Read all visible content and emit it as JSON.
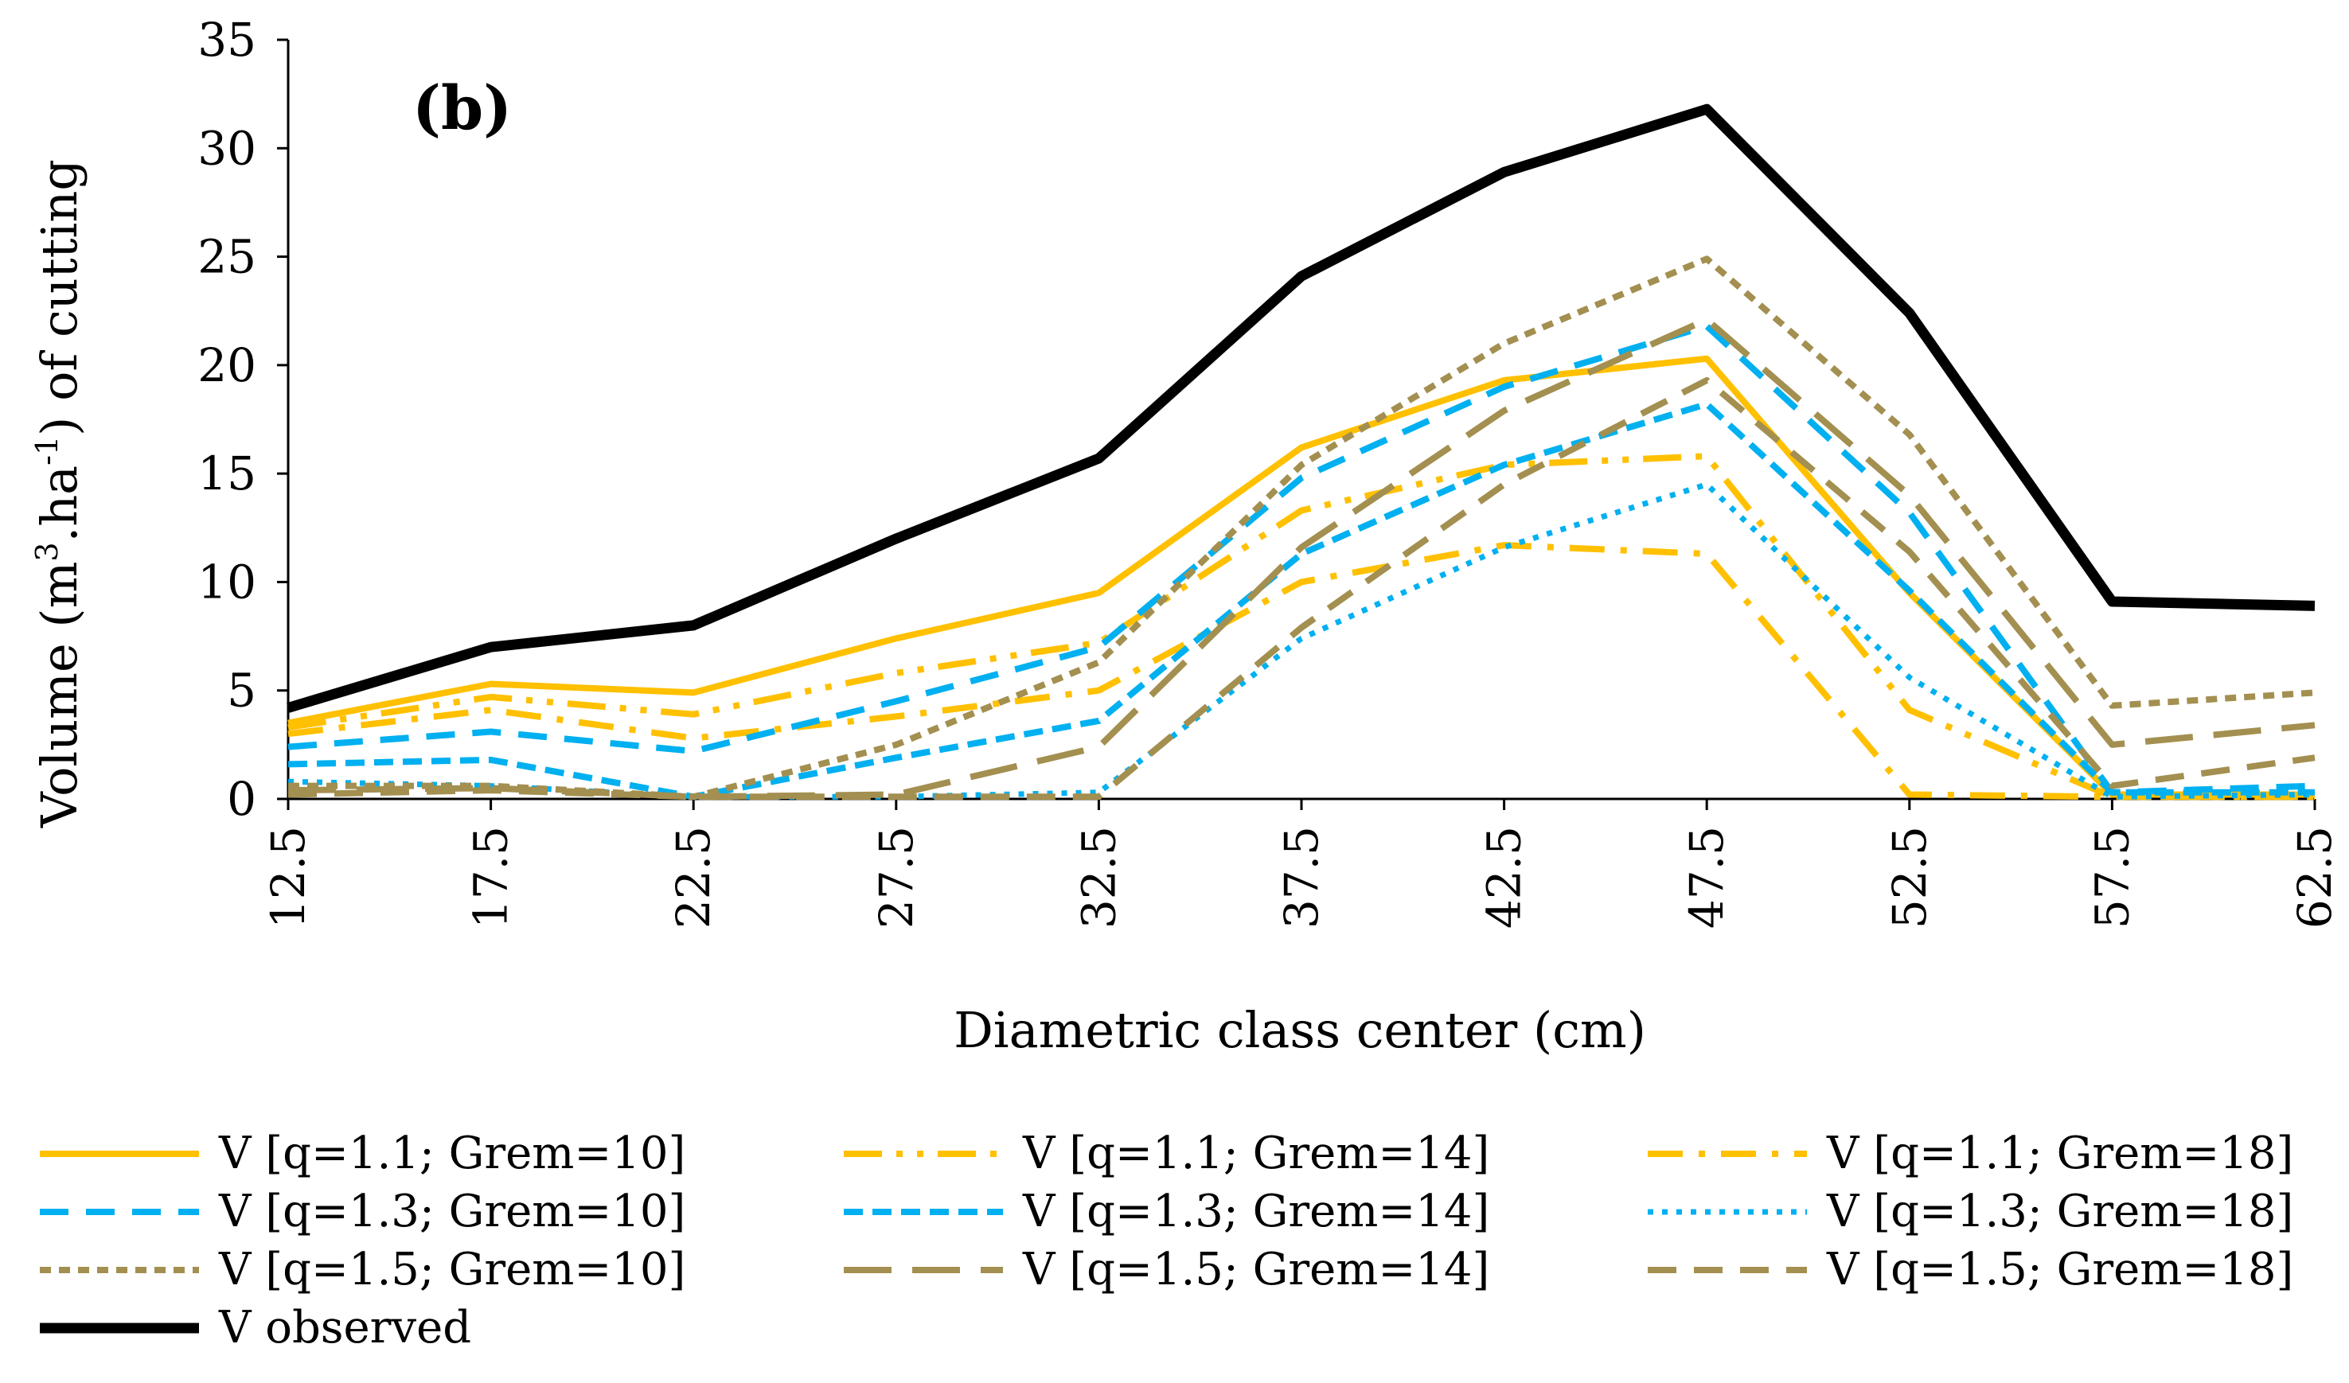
{
  "chart_data": {
    "type": "line",
    "panel_label": "(b)",
    "xlabel": "Diametric class center  (cm)",
    "ylabel_parts": [
      "Volume (m",
      "3",
      ".ha",
      "-1",
      ") of cutting"
    ],
    "categories": [
      "12.5",
      "17.5",
      "22.5",
      "27.5",
      "32.5",
      "37.5",
      "42.5",
      "47.5",
      "52.5",
      "57.5",
      "62.5"
    ],
    "ylim": [
      0,
      35
    ],
    "yticks": [
      "0",
      "5",
      "10",
      "15",
      "20",
      "25",
      "30",
      "35"
    ],
    "grid": false,
    "legend_position": "bottom",
    "series": [
      {
        "name": "V [q=1.1; Grem=10]",
        "color": "#FFC000",
        "style": "solid",
        "values": [
          3.5,
          5.3,
          4.9,
          7.4,
          9.5,
          16.2,
          19.3,
          20.3,
          9.5,
          0.2,
          0.2
        ]
      },
      {
        "name": "V [q=1.1; Grem=14]",
        "color": "#FFC000",
        "style": "longdashdotdot",
        "values": [
          3.3,
          4.7,
          3.9,
          5.8,
          7.2,
          13.3,
          15.4,
          15.8,
          4.1,
          0.1,
          0.1
        ]
      },
      {
        "name": "V [q=1.1; Grem=18]",
        "color": "#FFC000",
        "style": "dashdot",
        "values": [
          3.0,
          4.1,
          2.8,
          3.8,
          5.0,
          10.0,
          11.7,
          11.3,
          0.2,
          0.1,
          0.1
        ]
      },
      {
        "name": "V [q=1.3; Grem=10]",
        "color": "#00B0F0",
        "style": "dash",
        "values": [
          2.4,
          3.1,
          2.2,
          4.5,
          7.0,
          14.8,
          19.0,
          21.8,
          13.2,
          0.3,
          0.6
        ]
      },
      {
        "name": "V [q=1.3; Grem=14]",
        "color": "#00B0F0",
        "style": "squaredash",
        "values": [
          1.6,
          1.8,
          0.1,
          1.9,
          3.6,
          11.3,
          15.4,
          18.2,
          9.6,
          0.3,
          0.3
        ]
      },
      {
        "name": "V [q=1.3; Grem=18]",
        "color": "#00B0F0",
        "style": "dot",
        "values": [
          0.8,
          0.6,
          0.1,
          0.1,
          0.3,
          7.4,
          11.6,
          14.5,
          5.6,
          0.1,
          0.2
        ]
      },
      {
        "name": "V [q=1.5; Grem=10]",
        "color": "#A38F50",
        "style": "shortdash",
        "values": [
          0.6,
          0.6,
          0.1,
          2.5,
          6.3,
          15.4,
          21.0,
          24.9,
          16.8,
          4.3,
          4.9
        ]
      },
      {
        "name": "V [q=1.5; Grem=14]",
        "color": "#A38F50",
        "style": "longdash",
        "values": [
          0.4,
          0.5,
          0.1,
          0.2,
          2.4,
          11.6,
          17.9,
          22.1,
          14.0,
          2.5,
          3.4
        ]
      },
      {
        "name": "V [q=1.5; Grem=18]",
        "color": "#A38F50",
        "style": "dash",
        "values": [
          0.2,
          0.4,
          0.1,
          0.1,
          0.1,
          7.9,
          14.5,
          19.3,
          11.4,
          0.6,
          1.9
        ]
      },
      {
        "name": "V observed",
        "color": "#000000",
        "style": "thick",
        "values": [
          4.2,
          7.0,
          8.0,
          12.0,
          15.7,
          24.1,
          28.9,
          31.8,
          22.4,
          9.1,
          8.9
        ]
      }
    ]
  }
}
